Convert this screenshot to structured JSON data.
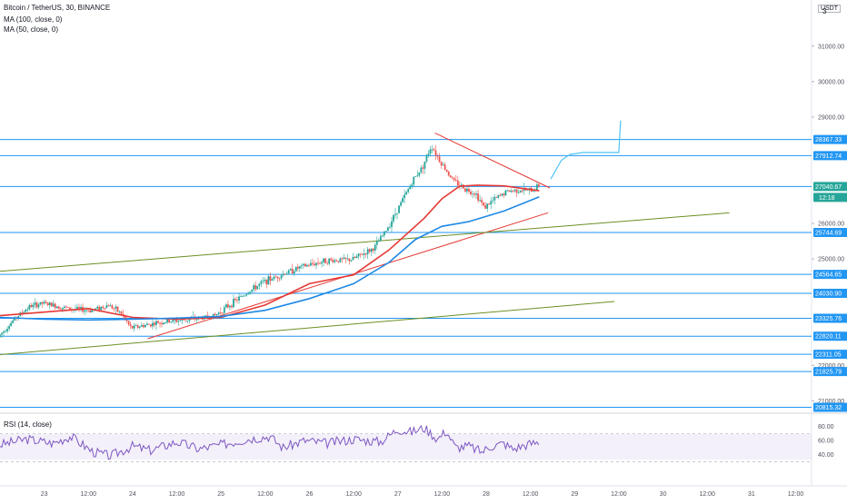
{
  "header": {
    "symbol": "Bitcoin / TetherUS, 30, BINANCE",
    "ma100": "MA (100, close, 0)",
    "ma50": "MA (50, close, 0)",
    "currency": "USDT",
    "top_price": "3"
  },
  "rsi": {
    "label": "RSI (14, close)",
    "ticks": [
      "80.00",
      "60.00",
      "40.00"
    ],
    "upper": 70,
    "lower": 30
  },
  "colors": {
    "horizontal_level": "#2196f3",
    "ma100": "#e53935",
    "ma50": "#1e88e5",
    "trendline_red": "#e53935",
    "trendline_green": "#6b8e23",
    "projection": "#4fc3f7",
    "rsi_line": "#7e57c2",
    "candle_up": "#26a69a",
    "candle_down": "#ef5350"
  },
  "chart_data": {
    "type": "candlestick",
    "x_ticks": [
      "23",
      "12:00",
      "24",
      "12:00",
      "25",
      "12:00",
      "26",
      "12:00",
      "27",
      "12:00",
      "28",
      "12:00",
      "29",
      "12:00",
      "30",
      "12:00",
      "31",
      "12:00"
    ],
    "x_range_days": [
      22.5,
      31.68
    ],
    "y_range": [
      20650,
      32300
    ],
    "y_ticks": [
      "31000.00",
      "30000.00",
      "29000.00",
      "26000.00",
      "25000.00",
      "22000.00",
      "21000.00"
    ],
    "levels": [
      "28367.33",
      "27912.74",
      "27040.67",
      "25744.69",
      "24564.65",
      "24030.90",
      "23325.76",
      "22820.11",
      "22311.05",
      "21825.79",
      "20815.32"
    ],
    "current_price": "27040.67",
    "countdown": "12:18",
    "ohlc_keypoints": [
      [
        22.5,
        22800
      ],
      [
        22.7,
        23350
      ],
      [
        22.85,
        23650
      ],
      [
        23.0,
        23750
      ],
      [
        23.3,
        23600
      ],
      [
        23.55,
        23550
      ],
      [
        23.75,
        23700
      ],
      [
        23.9,
        23450
      ],
      [
        24.0,
        23050
      ],
      [
        24.3,
        23200
      ],
      [
        24.7,
        23300
      ],
      [
        24.95,
        23400
      ],
      [
        25.2,
        23850
      ],
      [
        25.5,
        24350
      ],
      [
        25.9,
        24750
      ],
      [
        26.2,
        24950
      ],
      [
        26.5,
        24980
      ],
      [
        26.75,
        25300
      ],
      [
        26.9,
        25850
      ],
      [
        27.05,
        26550
      ],
      [
        27.2,
        27250
      ],
      [
        27.3,
        27600
      ],
      [
        27.4,
        28200
      ],
      [
        27.5,
        27750
      ],
      [
        27.65,
        27200
      ],
      [
        27.8,
        26950
      ],
      [
        27.9,
        26850
      ],
      [
        28.0,
        26450
      ],
      [
        28.1,
        26650
      ],
      [
        28.25,
        26900
      ],
      [
        28.4,
        26950
      ],
      [
        28.55,
        26920
      ],
      [
        28.6,
        27080
      ]
    ],
    "ma100_keypoints": [
      [
        22.5,
        23400
      ],
      [
        23.0,
        23500
      ],
      [
        23.5,
        23600
      ],
      [
        24.0,
        23350
      ],
      [
        24.5,
        23300
      ],
      [
        25.0,
        23350
      ],
      [
        25.5,
        23700
      ],
      [
        26.0,
        24300
      ],
      [
        26.5,
        24550
      ],
      [
        26.9,
        25250
      ],
      [
        27.3,
        26150
      ],
      [
        27.5,
        26700
      ],
      [
        27.7,
        27050
      ],
      [
        27.9,
        27080
      ],
      [
        28.2,
        27060
      ],
      [
        28.6,
        26920
      ]
    ],
    "ma50_keypoints": [
      [
        22.5,
        23350
      ],
      [
        23.0,
        23300
      ],
      [
        23.5,
        23280
      ],
      [
        24.0,
        23300
      ],
      [
        24.5,
        23330
      ],
      [
        25.0,
        23380
      ],
      [
        25.5,
        23550
      ],
      [
        26.0,
        23880
      ],
      [
        26.5,
        24300
      ],
      [
        26.9,
        24900
      ],
      [
        27.2,
        25550
      ],
      [
        27.5,
        25920
      ],
      [
        27.8,
        26050
      ],
      [
        28.2,
        26350
      ],
      [
        28.6,
        26750
      ]
    ],
    "trendlines": [
      {
        "color": "red",
        "from": [
          24.17,
          22750
        ],
        "to": [
          28.7,
          26300
        ]
      },
      {
        "color": "red",
        "from": [
          27.42,
          28550
        ],
        "to": [
          28.72,
          27000
        ]
      },
      {
        "color": "green",
        "from": [
          22.5,
          24650
        ],
        "to": [
          30.75,
          26300
        ]
      },
      {
        "color": "green",
        "from": [
          22.5,
          22300
        ],
        "to": [
          29.45,
          23800
        ]
      }
    ],
    "projection": [
      [
        28.73,
        27250
      ],
      [
        28.85,
        27780
      ],
      [
        28.95,
        27950
      ],
      [
        29.1,
        28000
      ],
      [
        29.5,
        28000
      ],
      [
        29.52,
        28900
      ]
    ],
    "rsi_keypoints": [
      [
        22.5,
        54
      ],
      [
        22.8,
        62
      ],
      [
        23.1,
        56
      ],
      [
        23.3,
        66
      ],
      [
        23.55,
        44
      ],
      [
        23.75,
        38
      ],
      [
        24.0,
        52
      ],
      [
        24.2,
        46
      ],
      [
        24.5,
        58
      ],
      [
        24.75,
        48
      ],
      [
        25.0,
        54
      ],
      [
        25.3,
        62
      ],
      [
        25.55,
        66
      ],
      [
        25.7,
        50
      ],
      [
        25.95,
        60
      ],
      [
        26.2,
        56
      ],
      [
        26.5,
        62
      ],
      [
        26.8,
        58
      ],
      [
        27.0,
        76
      ],
      [
        27.15,
        72
      ],
      [
        27.3,
        78
      ],
      [
        27.45,
        62
      ],
      [
        27.55,
        74
      ],
      [
        27.65,
        50
      ],
      [
        27.8,
        52
      ],
      [
        27.95,
        44
      ],
      [
        28.05,
        52
      ],
      [
        28.2,
        56
      ],
      [
        28.3,
        48
      ],
      [
        28.45,
        54
      ],
      [
        28.6,
        58
      ]
    ]
  }
}
